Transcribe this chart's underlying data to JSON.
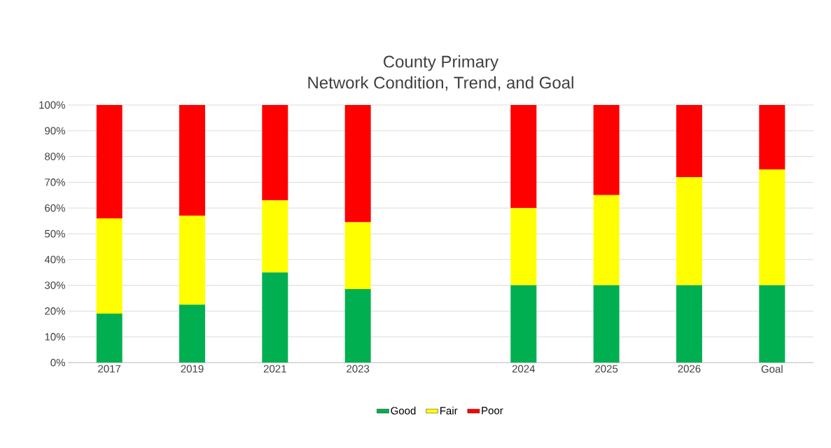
{
  "chart_data": {
    "type": "bar",
    "stacked": true,
    "title": "County Primary\nNetwork Condition, Trend, and Goal",
    "categories": [
      "2017",
      "2019",
      "2021",
      "2023",
      null,
      "2024",
      "2025",
      "2026",
      "Goal"
    ],
    "series": [
      {
        "name": "Good",
        "color": "#00b050",
        "values": [
          19,
          22.5,
          35,
          28.5,
          null,
          30,
          30,
          30,
          30
        ]
      },
      {
        "name": "Fair",
        "color": "#ffff00",
        "values": [
          37,
          34.5,
          28,
          26,
          null,
          30,
          35,
          42,
          45
        ]
      },
      {
        "name": "Poor",
        "color": "#ff0000",
        "values": [
          44,
          43,
          37,
          45.5,
          null,
          40,
          35,
          28,
          25
        ]
      }
    ],
    "ylim": [
      0,
      100
    ],
    "yticks": [
      {
        "value": 0,
        "label": "0%"
      },
      {
        "value": 10,
        "label": "10%"
      },
      {
        "value": 20,
        "label": "20%"
      },
      {
        "value": 30,
        "label": "30%"
      },
      {
        "value": 40,
        "label": "40%"
      },
      {
        "value": 50,
        "label": "50%"
      },
      {
        "value": 60,
        "label": "60%"
      },
      {
        "value": 70,
        "label": "70%"
      },
      {
        "value": 80,
        "label": "80%"
      },
      {
        "value": 90,
        "label": "90%"
      },
      {
        "value": 100,
        "label": "100%"
      }
    ],
    "grid": "y",
    "legend": "bottom"
  }
}
